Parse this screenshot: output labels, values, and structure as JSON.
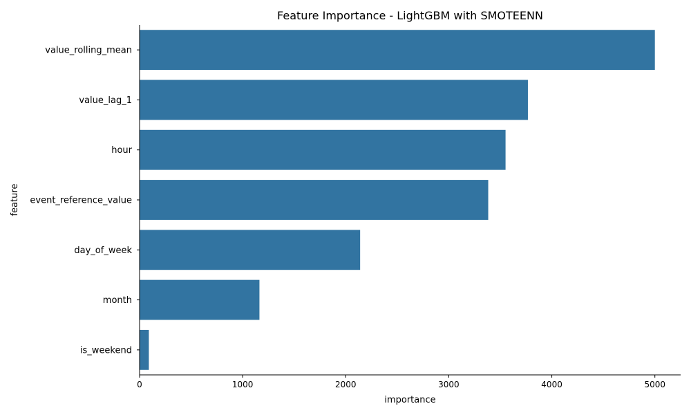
{
  "chart_data": {
    "type": "bar",
    "orientation": "horizontal",
    "title": "Feature Importance - LightGBM with SMOTEENN",
    "xlabel": "importance",
    "ylabel": "feature",
    "categories": [
      "value_rolling_mean",
      "value_lag_1",
      "hour",
      "event_reference_value",
      "day_of_week",
      "month",
      "is_weekend"
    ],
    "values": [
      5000,
      3768,
      3551,
      3383,
      2140,
      1163,
      90
    ],
    "xlim": [
      0,
      5250
    ],
    "xticks": [
      0,
      1000,
      2000,
      3000,
      4000,
      5000
    ],
    "bar_color": "#3274a1",
    "grid": false
  }
}
